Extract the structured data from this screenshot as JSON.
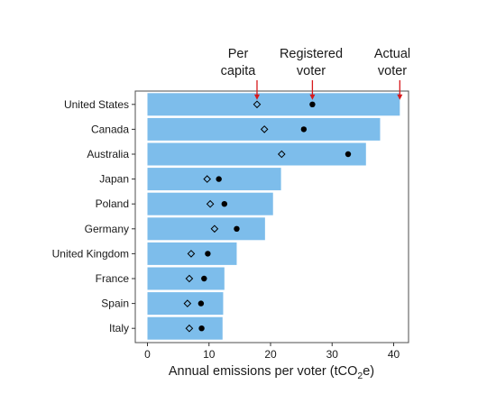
{
  "chart_data": {
    "type": "bar",
    "orientation": "horizontal",
    "categories": [
      "United States",
      "Canada",
      "Australia",
      "Japan",
      "Poland",
      "Germany",
      "United Kingdom",
      "France",
      "Spain",
      "Italy"
    ],
    "series": [
      {
        "name": "Actual voter",
        "marker": "bar",
        "values": [
          41,
          37.8,
          35.5,
          21.7,
          20.4,
          19.1,
          14.5,
          12.5,
          12.3,
          12.2
        ]
      },
      {
        "name": "Registered voter",
        "marker": "filled-circle",
        "values": [
          26.8,
          25.4,
          32.6,
          11.6,
          12.5,
          14.5,
          9.8,
          9.2,
          8.7,
          8.8
        ]
      },
      {
        "name": "Per capita",
        "marker": "open-diamond",
        "values": [
          17.8,
          19.0,
          21.8,
          9.7,
          10.2,
          10.9,
          7.1,
          6.8,
          6.5,
          6.8
        ]
      }
    ],
    "xlabel_parts": {
      "main": "Annual emissions per voter (tCO",
      "sub": "2",
      "tail": "e)"
    },
    "ylabel": "",
    "xlim": [
      0,
      41.5
    ],
    "xticks": [
      0,
      10,
      20,
      30,
      40
    ],
    "annotations": [
      {
        "lines": [
          "Per",
          "capita"
        ],
        "points_to": "United States per capita"
      },
      {
        "lines": [
          "Registered",
          "voter"
        ],
        "points_to": "United States registered voter"
      },
      {
        "lines": [
          "Actual",
          "voter"
        ],
        "points_to": "United States actual voter"
      }
    ],
    "grid": false,
    "legend": "none",
    "colors": {
      "bar": "#7dbdeb",
      "arrow": "#d7191c",
      "dot": "#000000",
      "diamond_stroke": "#000000"
    }
  }
}
